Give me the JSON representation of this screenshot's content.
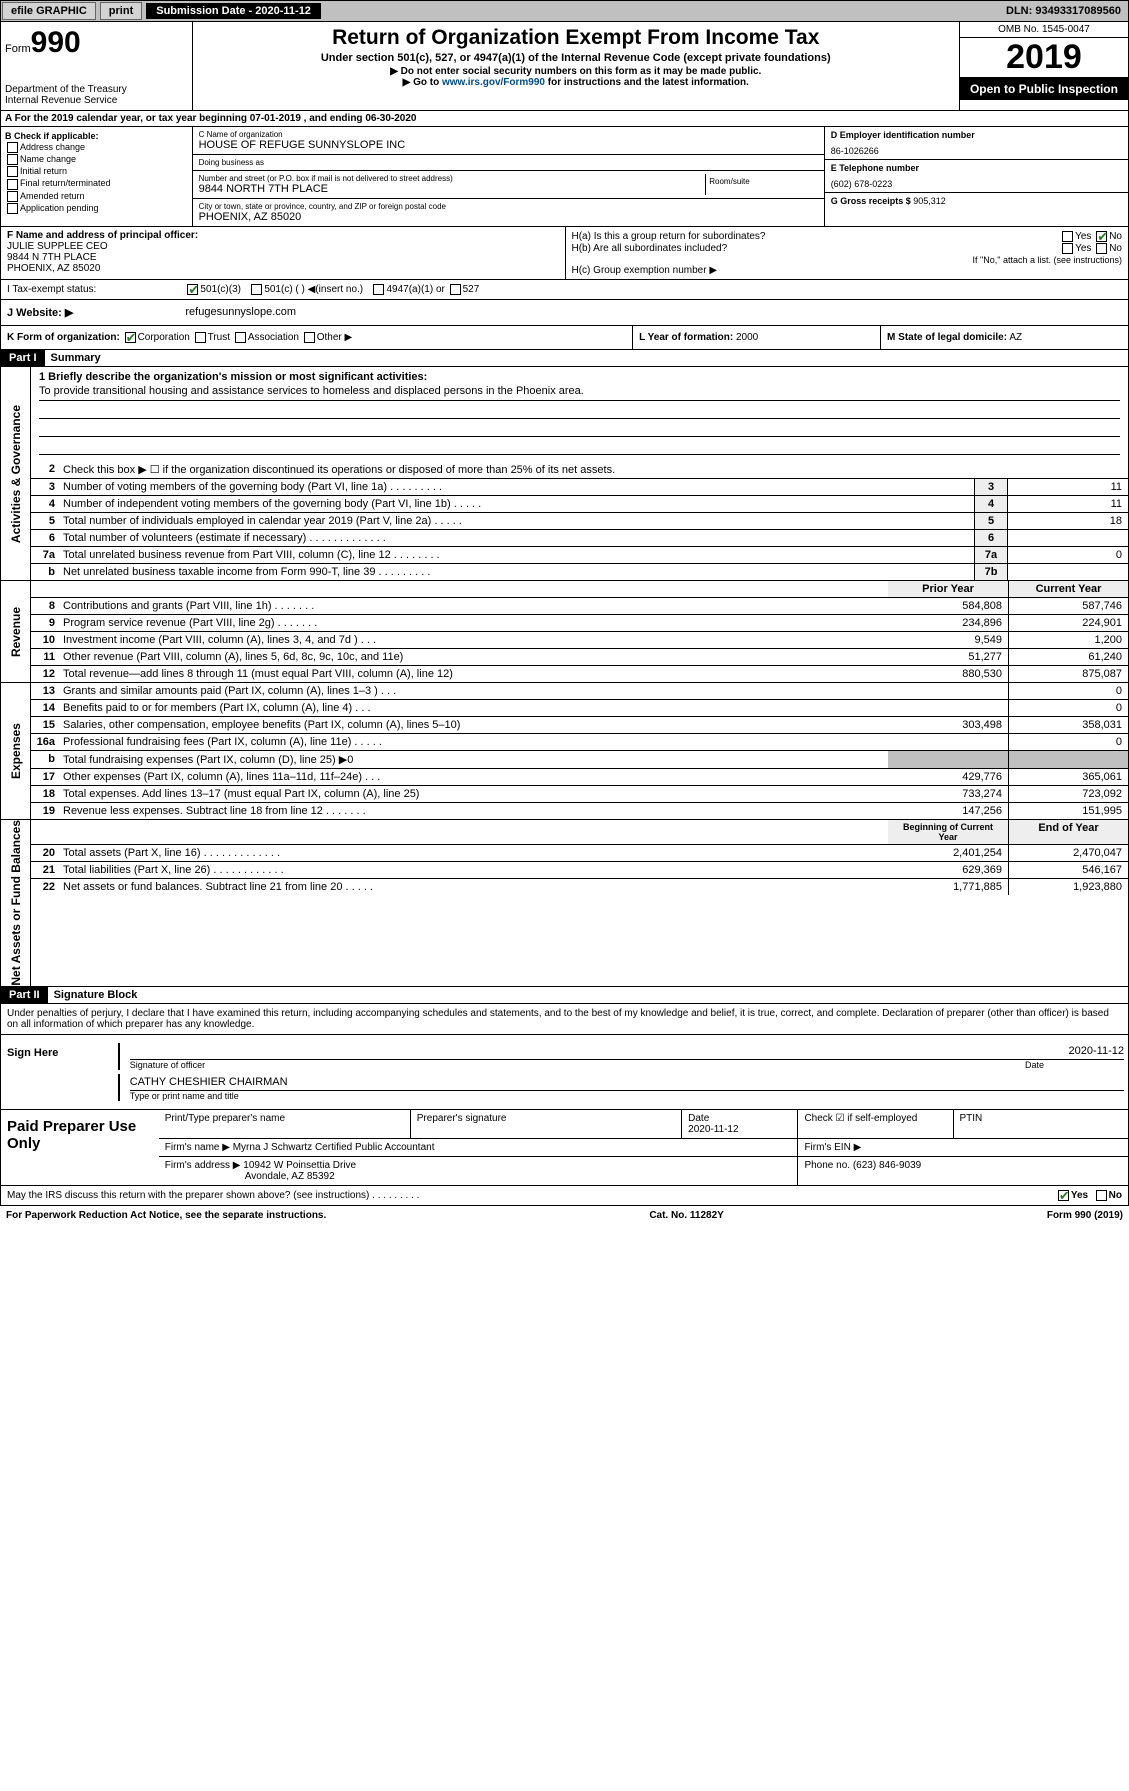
{
  "topbar": {
    "efile": "efile GRAPHIC",
    "print": "print",
    "subdate_lbl": "Submission Date - 2020-11-12",
    "dln": "DLN: 93493317089560"
  },
  "header": {
    "form": "Form",
    "num": "990",
    "title": "Return of Organization Exempt From Income Tax",
    "sub1": "Under section 501(c), 527, or 4947(a)(1) of the Internal Revenue Code (except private foundations)",
    "sub2": "▶ Do not enter social security numbers on this form as it may be made public.",
    "sub3": "▶ Go to www.irs.gov/Form990 for instructions and the latest information.",
    "dept": "Department of the Treasury\nInternal Revenue Service",
    "omb": "OMB No. 1545-0047",
    "year": "2019",
    "open": "Open to Public Inspection"
  },
  "rowA": "A  For the 2019 calendar year, or tax year beginning 07-01-2019   , and ending 06-30-2020",
  "secB": {
    "header": "B Check if applicable:",
    "items": [
      "Address change",
      "Name change",
      "Initial return",
      "Final return/terminated",
      "Amended return",
      "Application pending"
    ]
  },
  "secC": {
    "name_lbl": "C Name of organization",
    "name": "HOUSE OF REFUGE SUNNYSLOPE INC",
    "dba_lbl": "Doing business as",
    "dba": "",
    "street_lbl": "Number and street (or P.O. box if mail is not delivered to street address)",
    "room_lbl": "Room/suite",
    "street": "9844 NORTH 7TH PLACE",
    "city_lbl": "City or town, state or province, country, and ZIP or foreign postal code",
    "city": "PHOENIX, AZ  85020"
  },
  "secD": {
    "lbl": "D Employer identification number",
    "val": "86-1026266"
  },
  "secE": {
    "lbl": "E Telephone number",
    "val": "(602) 678-0223"
  },
  "secG": {
    "lbl": "G Gross receipts $",
    "val": "905,312"
  },
  "secF": {
    "lbl": "F  Name and address of principal officer:",
    "name": "JULIE SUPPLEE CEO",
    "addr1": "9844 N 7TH PLACE",
    "addr2": "PHOENIX, AZ  85020"
  },
  "secH": {
    "a": "H(a)  Is this a group return for subordinates?",
    "a_no": "No",
    "a_yes": "Yes",
    "b": "H(b)  Are all subordinates included?",
    "b_note": "If \"No,\" attach a list. (see instructions)",
    "c": "H(c)  Group exemption number ▶"
  },
  "taxrow": {
    "lbl": "I  Tax-exempt status:",
    "c1": "501(c)(3)",
    "c2": "501(c) (  ) ◀(insert no.)",
    "c3": "4947(a)(1) or",
    "c4": "527"
  },
  "web": {
    "lbl": "J  Website: ▶",
    "val": "refugesunnyslope.com"
  },
  "klm": {
    "k": "K Form of organization:",
    "k_opts": [
      "Corporation",
      "Trust",
      "Association",
      "Other ▶"
    ],
    "l_lbl": "L Year of formation:",
    "l_val": "2000",
    "m_lbl": "M State of legal domicile:",
    "m_val": "AZ"
  },
  "part1": {
    "hdr": "Part I",
    "title": "Summary"
  },
  "mission": {
    "lbl": "1  Briefly describe the organization's mission or most significant activities:",
    "text": "To provide transitional housing and assistance services to homeless and displaced persons in the Phoenix area."
  },
  "gov_lines": [
    {
      "n": "2",
      "d": "Check this box ▶ ☐  if the organization discontinued its operations or disposed of more than 25% of its net assets."
    },
    {
      "n": "3",
      "d": "Number of voting members of the governing body (Part VI, line 1a)  .  .  .  .  .  .  .  .  .",
      "nc": "3",
      "v": "11"
    },
    {
      "n": "4",
      "d": "Number of independent voting members of the governing body (Part VI, line 1b)  .  .  .  .  .",
      "nc": "4",
      "v": "11"
    },
    {
      "n": "5",
      "d": "Total number of individuals employed in calendar year 2019 (Part V, line 2a)  .  .  .  .  .",
      "nc": "5",
      "v": "18"
    },
    {
      "n": "6",
      "d": "Total number of volunteers (estimate if necessary)  .  .  .  .  .  .  .  .  .  .  .  .  .",
      "nc": "6",
      "v": ""
    },
    {
      "n": "7a",
      "d": "Total unrelated business revenue from Part VIII, column (C), line 12  .  .  .  .  .  .  .  .",
      "nc": "7a",
      "v": "0"
    },
    {
      "n": "b",
      "d": "Net unrelated business taxable income from Form 990-T, line 39  .  .  .  .  .  .  .  .  .",
      "nc": "7b",
      "v": ""
    }
  ],
  "rev_hdr": {
    "py": "Prior Year",
    "cy": "Current Year"
  },
  "rev_lines": [
    {
      "n": "8",
      "d": "Contributions and grants (Part VIII, line 1h)  .  .  .  .  .  .  .",
      "py": "584,808",
      "cy": "587,746"
    },
    {
      "n": "9",
      "d": "Program service revenue (Part VIII, line 2g)  .  .  .  .  .  .  .",
      "py": "234,896",
      "cy": "224,901"
    },
    {
      "n": "10",
      "d": "Investment income (Part VIII, column (A), lines 3, 4, and 7d )  .  .  .",
      "py": "9,549",
      "cy": "1,200"
    },
    {
      "n": "11",
      "d": "Other revenue (Part VIII, column (A), lines 5, 6d, 8c, 9c, 10c, and 11e)",
      "py": "51,277",
      "cy": "61,240"
    },
    {
      "n": "12",
      "d": "Total revenue—add lines 8 through 11 (must equal Part VIII, column (A), line 12)",
      "py": "880,530",
      "cy": "875,087"
    }
  ],
  "exp_lines": [
    {
      "n": "13",
      "d": "Grants and similar amounts paid (Part IX, column (A), lines 1–3 )  .  .  .",
      "py": "",
      "cy": "0"
    },
    {
      "n": "14",
      "d": "Benefits paid to or for members (Part IX, column (A), line 4)  .  .  .",
      "py": "",
      "cy": "0"
    },
    {
      "n": "15",
      "d": "Salaries, other compensation, employee benefits (Part IX, column (A), lines 5–10)",
      "py": "303,498",
      "cy": "358,031"
    },
    {
      "n": "16a",
      "d": "Professional fundraising fees (Part IX, column (A), line 11e)  .  .  .  .  .",
      "py": "",
      "cy": "0"
    },
    {
      "n": "b",
      "d": "Total fundraising expenses (Part IX, column (D), line 25) ▶0",
      "gray": true,
      "py": "",
      "cy": ""
    },
    {
      "n": "17",
      "d": "Other expenses (Part IX, column (A), lines 11a–11d, 11f–24e)  .  .  .",
      "py": "429,776",
      "cy": "365,061"
    },
    {
      "n": "18",
      "d": "Total expenses. Add lines 13–17 (must equal Part IX, column (A), line 25)",
      "py": "733,274",
      "cy": "723,092"
    },
    {
      "n": "19",
      "d": "Revenue less expenses. Subtract line 18 from line 12  .  .  .  .  .  .  .",
      "py": "147,256",
      "cy": "151,995"
    }
  ],
  "net_hdr": {
    "py": "Beginning of Current Year",
    "cy": "End of Year"
  },
  "net_lines": [
    {
      "n": "20",
      "d": "Total assets (Part X, line 16)  .  .  .  .  .  .  .  .  .  .  .  .  .",
      "py": "2,401,254",
      "cy": "2,470,047"
    },
    {
      "n": "21",
      "d": "Total liabilities (Part X, line 26)  .  .  .  .  .  .  .  .  .  .  .  .",
      "py": "629,369",
      "cy": "546,167"
    },
    {
      "n": "22",
      "d": "Net assets or fund balances. Subtract line 21 from line 20  .  .  .  .  .",
      "py": "1,771,885",
      "cy": "1,923,880"
    }
  ],
  "vtabs": {
    "gov": "Activities & Governance",
    "rev": "Revenue",
    "exp": "Expenses",
    "net": "Net Assets or Fund Balances"
  },
  "part2": {
    "hdr": "Part II",
    "title": "Signature Block"
  },
  "penalty": "Under penalties of perjury, I declare that I have examined this return, including accompanying schedules and statements, and to the best of my knowledge and belief, it is true, correct, and complete. Declaration of preparer (other than officer) is based on all information of which preparer has any knowledge.",
  "sign": {
    "here": "Sign Here",
    "sig_lbl": "Signature of officer",
    "date": "2020-11-12",
    "date_lbl": "Date",
    "name": "CATHY CHESHIER  CHAIRMAN",
    "name_lbl": "Type or print name and title"
  },
  "prep": {
    "lbl": "Paid Preparer Use Only",
    "h1": "Print/Type preparer's name",
    "h2": "Preparer's signature",
    "h3": "Date",
    "h3v": "2020-11-12",
    "h4": "Check ☑ if self-employed",
    "h5": "PTIN",
    "firm_lbl": "Firm's name  ▶",
    "firm": "Myrna J Schwartz Certified Public Accountant",
    "ein_lbl": "Firm's EIN ▶",
    "addr_lbl": "Firm's address ▶",
    "addr1": "10942 W Poinsettia Drive",
    "addr2": "Avondale, AZ  85392",
    "phone_lbl": "Phone no.",
    "phone": "(623) 846-9039"
  },
  "discuss": {
    "q": "May the IRS discuss this return with the preparer shown above? (see instructions)  .  .  .  .  .  .  .  .  .",
    "yes": "Yes",
    "no": "No"
  },
  "footer": {
    "l": "For Paperwork Reduction Act Notice, see the separate instructions.",
    "m": "Cat. No. 11282Y",
    "r": "Form 990 (2019)"
  }
}
